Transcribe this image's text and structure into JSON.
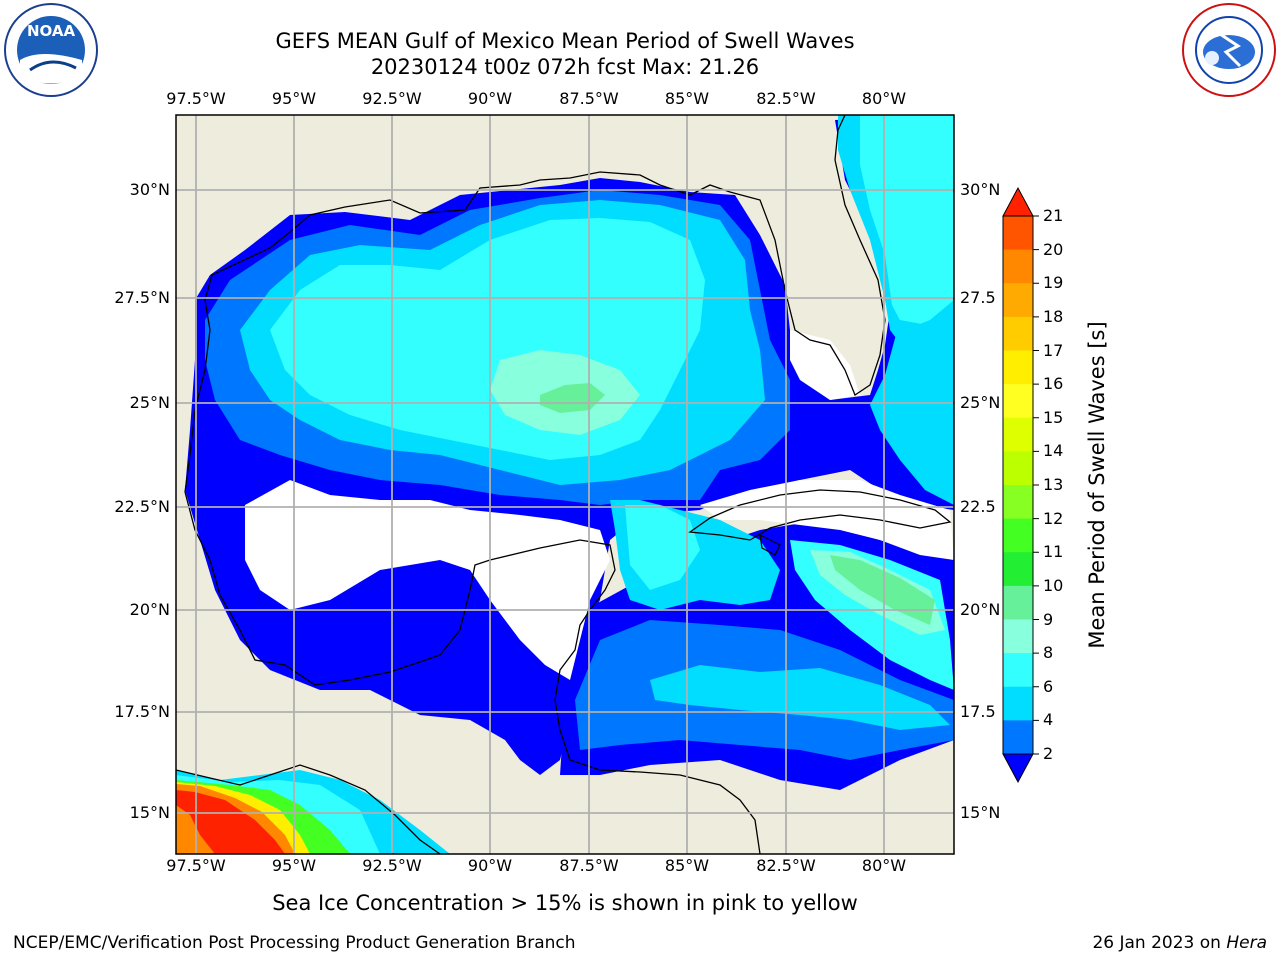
{
  "header": {
    "title_line1": "GEFS MEAN Gulf of Mexico Mean Period of Swell Waves",
    "title_line2": "20230124 t00z 072h fcst   Max: 21.26"
  },
  "logos": {
    "left": {
      "name": "noaa-logo",
      "text": "NOAA",
      "ring_text": "NATIONAL OCEANIC AND ATMOSPHERIC ADMINISTRATION · U.S. DEPARTMENT OF COMMERCE"
    },
    "right": {
      "name": "nws-logo",
      "ring_text": "NATIONAL WEATHER SERVICE"
    }
  },
  "map": {
    "lon_labels": [
      "97.5°W",
      "95°W",
      "92.5°W",
      "90°W",
      "87.5°W",
      "85°W",
      "82.5°W",
      "80°W"
    ],
    "lat_labels_left": [
      "30°N",
      "27.5°N",
      "25°N",
      "22.5°N",
      "20°N",
      "17.5°N",
      "15°N"
    ],
    "lat_labels_right": [
      "30°N",
      "27.5",
      "25°N",
      "22.5",
      "20°N",
      "17.5",
      "15°N"
    ],
    "land_color": "#eeecdc",
    "gridline_color": "#b0b0b0"
  },
  "colorbar": {
    "label": "Mean Period of Swell Waves [s]",
    "ticks": [
      "21",
      "20",
      "19",
      "18",
      "17",
      "16",
      "15",
      "14",
      "13",
      "12",
      "11",
      "10",
      "9",
      "8",
      "6",
      "4",
      "2"
    ],
    "colors": [
      "#ff2200",
      "#ff5500",
      "#ff8800",
      "#ffaa00",
      "#ffcc00",
      "#ffee00",
      "#ffff22",
      "#ddff00",
      "#bbff00",
      "#88ff22",
      "#44ff22",
      "#22ee33",
      "#66f09a",
      "#88ffdd",
      "#33ffff",
      "#00ddff",
      "#0077ff",
      "#0000ff"
    ]
  },
  "note": "Sea Ice Concentration > 15% is shown in pink to yellow",
  "footer": {
    "left": "NCEP/EMC/Verification Post Processing Product Generation Branch",
    "date": "26 Jan 2023 on ",
    "machine": "Hera"
  }
}
